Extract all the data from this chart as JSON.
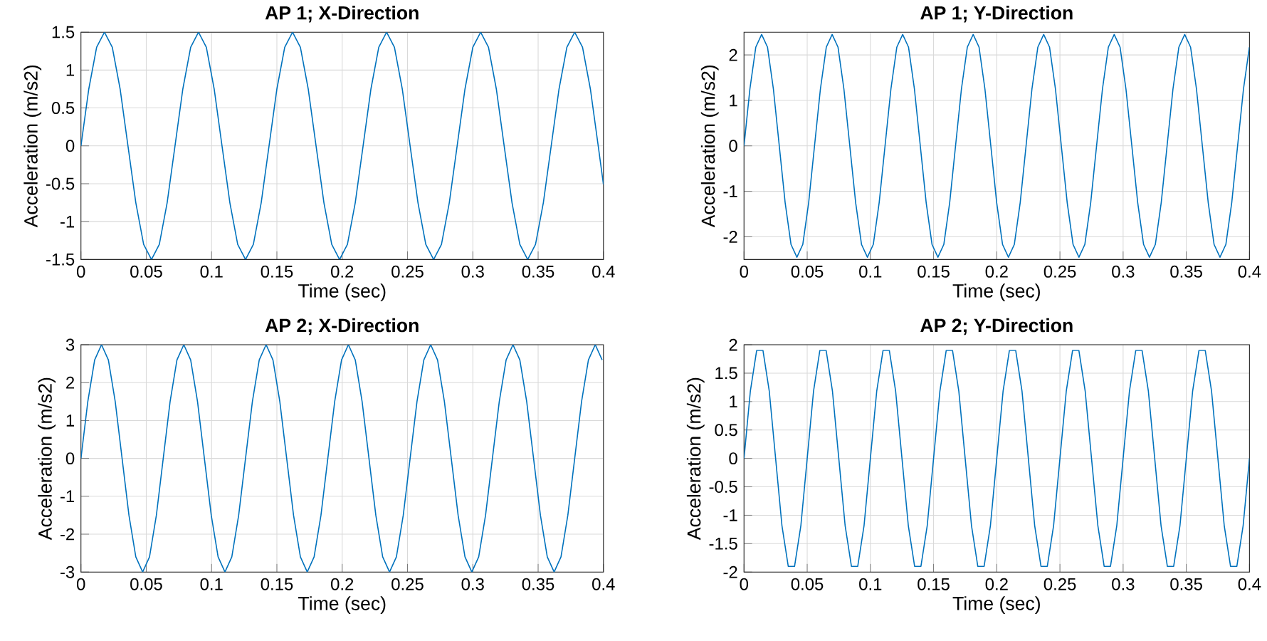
{
  "chart_data": [
    {
      "type": "line",
      "title": "AP 1; X-Direction",
      "xlabel": "Time (sec)",
      "ylabel": "Acceleration (m/s2)",
      "xlim": [
        0,
        0.4
      ],
      "ylim": [
        -1.5,
        1.5
      ],
      "xticks": [
        0,
        0.05,
        0.1,
        0.15,
        0.2,
        0.25,
        0.3,
        0.35,
        0.4
      ],
      "yticks": [
        -1.5,
        -1,
        -0.5,
        0,
        0.5,
        1,
        1.5
      ],
      "grid": true,
      "series": [
        {
          "color": "#0072bd",
          "x": [
            0,
            0.006,
            0.012,
            0.018,
            0.024,
            0.03,
            0.036,
            0.042,
            0.048,
            0.054,
            0.06,
            0.066,
            0.072,
            0.078,
            0.084,
            0.09,
            0.096,
            0.102,
            0.108,
            0.114,
            0.12,
            0.126,
            0.132,
            0.138,
            0.144,
            0.15,
            0.156,
            0.162,
            0.168,
            0.174,
            0.18,
            0.186,
            0.192,
            0.198,
            0.204,
            0.21,
            0.216,
            0.222,
            0.228,
            0.234,
            0.24,
            0.246,
            0.252,
            0.258,
            0.264,
            0.27,
            0.276,
            0.282,
            0.288,
            0.294,
            0.3,
            0.306,
            0.312,
            0.318,
            0.324,
            0.33,
            0.336,
            0.342,
            0.348,
            0.354,
            0.36,
            0.366,
            0.372,
            0.378,
            0.384,
            0.39,
            0.396,
            0.4
          ],
          "values": [
            0,
            0.75,
            1.3,
            1.5,
            1.3,
            0.75,
            0,
            -0.75,
            -1.3,
            -1.5,
            -1.3,
            -0.75,
            0,
            0.75,
            1.3,
            1.5,
            1.3,
            0.75,
            0,
            -0.75,
            -1.3,
            -1.5,
            -1.3,
            -0.75,
            0,
            0.75,
            1.3,
            1.5,
            1.3,
            0.75,
            0,
            -0.75,
            -1.3,
            -1.5,
            -1.3,
            -0.75,
            0,
            0.75,
            1.3,
            1.5,
            1.3,
            0.75,
            0,
            -0.75,
            -1.3,
            -1.5,
            -1.3,
            -0.75,
            0,
            0.75,
            1.3,
            1.5,
            1.3,
            0.75,
            0,
            -0.75,
            -1.3,
            -1.5,
            -1.3,
            -0.75,
            0,
            0.75,
            1.3,
            1.5,
            1.3,
            0.75,
            0,
            -0.51
          ]
        }
      ]
    },
    {
      "type": "line",
      "title": "AP 1; Y-Direction",
      "xlabel": "Time (sec)",
      "ylabel": "Acceleration (m/s2)",
      "xlim": [
        0,
        0.4
      ],
      "ylim": [
        -2.5,
        2.5
      ],
      "xticks": [
        0,
        0.05,
        0.1,
        0.15,
        0.2,
        0.25,
        0.3,
        0.35,
        0.4
      ],
      "yticks": [
        -2,
        -1,
        0,
        1,
        2
      ],
      "grid": true,
      "series": [
        {
          "color": "#0072bd",
          "x": [
            0,
            0.00465,
            0.0093,
            0.01395,
            0.0186,
            0.02325,
            0.0279,
            0.03255,
            0.0372,
            0.04185,
            0.0465,
            0.05115,
            0.0558,
            0.06045,
            0.0651,
            0.06975,
            0.0744,
            0.07905,
            0.0837,
            0.08835,
            0.093,
            0.09765,
            0.1023,
            0.10695,
            0.1116,
            0.11625,
            0.1209,
            0.12555,
            0.1302,
            0.13485,
            0.1395,
            0.14415,
            0.1488,
            0.15345,
            0.1581,
            0.16275,
            0.1674,
            0.17205,
            0.1767,
            0.18135,
            0.186,
            0.19065,
            0.1953,
            0.19995,
            0.2046,
            0.20925,
            0.2139,
            0.21855,
            0.2232,
            0.22785,
            0.2325,
            0.23715,
            0.2418,
            0.24645,
            0.2511,
            0.25575,
            0.2604,
            0.26505,
            0.2697,
            0.27435,
            0.279,
            0.28365,
            0.2883,
            0.29295,
            0.2976,
            0.30225,
            0.3069,
            0.31155,
            0.3162,
            0.32085,
            0.3255,
            0.33015,
            0.3348,
            0.33945,
            0.3441,
            0.34875,
            0.3534,
            0.35805,
            0.3627,
            0.36735,
            0.372,
            0.37665,
            0.3813,
            0.38595,
            0.3906,
            0.39525,
            0.3999
          ],
          "values": [
            0,
            1.25,
            2.17,
            2.45,
            2.17,
            1.25,
            0,
            -1.25,
            -2.17,
            -2.45,
            -2.17,
            -1.25,
            0,
            1.25,
            2.17,
            2.45,
            2.17,
            1.25,
            0,
            -1.25,
            -2.17,
            -2.45,
            -2.17,
            -1.25,
            0,
            1.25,
            2.17,
            2.45,
            2.17,
            1.25,
            0,
            -1.25,
            -2.17,
            -2.45,
            -2.17,
            -1.25,
            0,
            1.25,
            2.17,
            2.45,
            2.17,
            1.25,
            0,
            -1.25,
            -2.17,
            -2.45,
            -2.17,
            -1.25,
            0,
            1.25,
            2.17,
            2.45,
            2.17,
            1.25,
            0,
            -1.25,
            -2.17,
            -2.45,
            -2.17,
            -1.25,
            0,
            1.25,
            2.17,
            2.45,
            2.17,
            1.25,
            0,
            -1.25,
            -2.17,
            -2.45,
            -2.17,
            -1.25,
            0,
            1.25,
            2.17,
            2.45,
            2.17,
            1.25,
            0,
            -1.25,
            -2.17,
            -2.45,
            -2.17,
            -1.25,
            0,
            1.25,
            2.17
          ]
        }
      ]
    },
    {
      "type": "line",
      "title": "AP 2; X-Direction",
      "xlabel": "Time (sec)",
      "ylabel": "Acceleration (m/s2)",
      "xlim": [
        0,
        0.4
      ],
      "ylim": [
        -3,
        3
      ],
      "xticks": [
        0,
        0.05,
        0.1,
        0.15,
        0.2,
        0.25,
        0.3,
        0.35,
        0.4
      ],
      "yticks": [
        -3,
        -2,
        -1,
        0,
        1,
        2,
        3
      ],
      "grid": true,
      "series": [
        {
          "color": "#0072bd",
          "x": [
            0,
            0.00525,
            0.0105,
            0.01575,
            0.021,
            0.02625,
            0.0315,
            0.03675,
            0.042,
            0.04725,
            0.0525,
            0.05775,
            0.063,
            0.06825,
            0.0735,
            0.07875,
            0.084,
            0.08925,
            0.0945,
            0.09975,
            0.105,
            0.11025,
            0.1155,
            0.12075,
            0.126,
            0.13125,
            0.1365,
            0.14175,
            0.147,
            0.15225,
            0.1575,
            0.16275,
            0.168,
            0.17325,
            0.1785,
            0.18375,
            0.189,
            0.19425,
            0.1995,
            0.20475,
            0.21,
            0.21525,
            0.2205,
            0.22575,
            0.231,
            0.23625,
            0.2415,
            0.24675,
            0.252,
            0.25725,
            0.2625,
            0.26775,
            0.273,
            0.27825,
            0.2835,
            0.28875,
            0.294,
            0.29925,
            0.3045,
            0.30975,
            0.315,
            0.32025,
            0.3255,
            0.33075,
            0.336,
            0.34125,
            0.3465,
            0.35175,
            0.357,
            0.36225,
            0.3675,
            0.37275,
            0.378,
            0.38325,
            0.3885,
            0.39375,
            0.399
          ],
          "values": [
            0,
            1.5,
            2.6,
            3,
            2.6,
            1.5,
            0,
            -1.5,
            -2.6,
            -3,
            -2.6,
            -1.5,
            0,
            1.5,
            2.6,
            3,
            2.6,
            1.5,
            0,
            -1.5,
            -2.6,
            -3,
            -2.6,
            -1.5,
            0,
            1.5,
            2.6,
            3,
            2.6,
            1.5,
            0,
            -1.5,
            -2.6,
            -3,
            -2.6,
            -1.5,
            0,
            1.5,
            2.6,
            3,
            2.6,
            1.5,
            0,
            -1.5,
            -2.6,
            -3,
            -2.6,
            -1.5,
            0,
            1.5,
            2.6,
            3,
            2.6,
            1.5,
            0,
            -1.5,
            -2.6,
            -3,
            -2.6,
            -1.5,
            0,
            1.5,
            2.6,
            3,
            2.6,
            1.5,
            0,
            -1.5,
            -2.6,
            -3,
            -2.6,
            -1.5,
            0,
            1.5,
            2.6,
            3,
            2.6
          ]
        }
      ]
    },
    {
      "type": "line",
      "title": "AP 2; Y-Direction",
      "xlabel": "Time (sec)",
      "ylabel": "Acceleration (m/s2)",
      "xlim": [
        0,
        0.4
      ],
      "ylim": [
        -2,
        2
      ],
      "xticks": [
        0,
        0.05,
        0.1,
        0.15,
        0.2,
        0.25,
        0.3,
        0.35,
        0.4
      ],
      "yticks": [
        -2,
        -1.5,
        -1,
        -0.5,
        0,
        0.5,
        1,
        1.5,
        2
      ],
      "grid": true,
      "series": [
        {
          "color": "#0072bd",
          "x": [
            0,
            0.005,
            0.01,
            0.015,
            0.02,
            0.025,
            0.03,
            0.035,
            0.04,
            0.045,
            0.05,
            0.055,
            0.06,
            0.065,
            0.07,
            0.075,
            0.08,
            0.085,
            0.09,
            0.095,
            0.1,
            0.105,
            0.11,
            0.115,
            0.12,
            0.125,
            0.13,
            0.135,
            0.14,
            0.145,
            0.15,
            0.155,
            0.16,
            0.165,
            0.17,
            0.175,
            0.18,
            0.185,
            0.19,
            0.195,
            0.2,
            0.205,
            0.21,
            0.215,
            0.22,
            0.225,
            0.23,
            0.235,
            0.24,
            0.245,
            0.25,
            0.255,
            0.26,
            0.265,
            0.27,
            0.275,
            0.28,
            0.285,
            0.29,
            0.295,
            0.3,
            0.305,
            0.31,
            0.315,
            0.32,
            0.325,
            0.33,
            0.335,
            0.34,
            0.345,
            0.35,
            0.355,
            0.36,
            0.365,
            0.37,
            0.375,
            0.38,
            0.385,
            0.39,
            0.395,
            0.4
          ],
          "values": [
            0,
            1.18,
            1.9,
            1.9,
            1.18,
            0,
            -1.18,
            -1.9,
            -1.9,
            -1.18,
            0,
            1.18,
            1.9,
            1.9,
            1.18,
            0,
            -1.18,
            -1.9,
            -1.9,
            -1.18,
            0,
            1.18,
            1.9,
            1.9,
            1.18,
            0,
            -1.18,
            -1.9,
            -1.9,
            -1.18,
            0,
            1.18,
            1.9,
            1.9,
            1.18,
            0,
            -1.18,
            -1.9,
            -1.9,
            -1.18,
            0,
            1.18,
            1.9,
            1.9,
            1.18,
            0,
            -1.18,
            -1.9,
            -1.9,
            -1.18,
            0,
            1.18,
            1.9,
            1.9,
            1.18,
            0,
            -1.18,
            -1.9,
            -1.9,
            -1.18,
            0,
            1.18,
            1.9,
            1.9,
            1.18,
            0,
            -1.18,
            -1.9,
            -1.9,
            -1.18,
            0,
            1.18,
            1.9,
            1.9,
            1.18,
            0,
            -1.18,
            -1.9,
            -1.9,
            -1.18,
            0
          ]
        }
      ]
    }
  ]
}
